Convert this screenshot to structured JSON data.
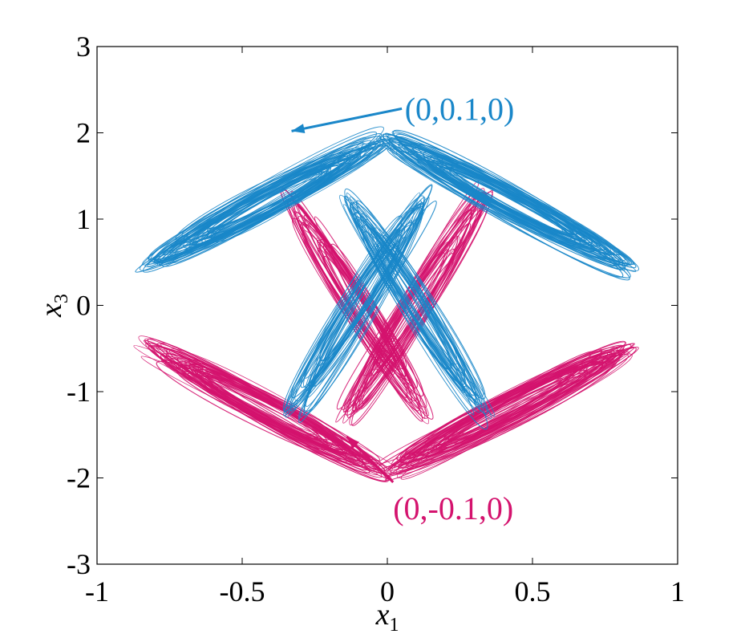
{
  "chart_data": {
    "type": "line",
    "title": "",
    "xlabel": {
      "base": "x",
      "sub": "1"
    },
    "ylabel": {
      "base": "x",
      "sub": "3"
    },
    "xlim": [
      -1,
      1
    ],
    "ylim": [
      -3,
      3
    ],
    "xticks": [
      -1,
      -0.5,
      0,
      0.5,
      1
    ],
    "yticks": [
      -3,
      -2,
      -1,
      0,
      1,
      2,
      3
    ],
    "xtick_labels": [
      "-1",
      "-0.5",
      "0",
      "0.5",
      "1"
    ],
    "ytick_labels": [
      "-3",
      "-2",
      "-1",
      "0",
      "1",
      "2",
      "3"
    ],
    "grid": false,
    "series": [
      {
        "color": "#1a87c9",
        "initial_condition": "(0,0.1,0)",
        "lobes": [
          {
            "center": [
              -0.42,
              1.2
            ],
            "extent": 0.62,
            "angle_deg": -28
          },
          {
            "center": [
              0.42,
              1.2
            ],
            "extent": 0.62,
            "angle_deg": 28
          },
          {
            "center": [
              -0.1,
              0.0
            ],
            "extent": 0.6,
            "angle_deg": -58
          },
          {
            "center": [
              0.1,
              0.0
            ],
            "extent": 0.6,
            "angle_deg": 58
          }
        ]
      },
      {
        "color": "#d4136e",
        "initial_condition": "(0,-0.1,0)",
        "lobes": [
          {
            "center": [
              -0.42,
              -1.2
            ],
            "extent": 0.62,
            "angle_deg": 28
          },
          {
            "center": [
              0.42,
              -1.2
            ],
            "extent": 0.62,
            "angle_deg": -28
          },
          {
            "center": [
              -0.1,
              0.0
            ],
            "extent": 0.6,
            "angle_deg": 58
          },
          {
            "center": [
              0.1,
              0.0
            ],
            "extent": 0.6,
            "angle_deg": -58
          }
        ]
      }
    ],
    "annotations": [
      {
        "text": "(0,0.1,0)",
        "color": "#1a87c9",
        "arrow_from": [
          0.05,
          2.28
        ],
        "arrow_to": [
          -0.33,
          2.02
        ]
      },
      {
        "text": "(0,-0.1,0)",
        "color": "#d4136e",
        "arrow_from": [
          0.02,
          -2.05
        ],
        "arrow_to": [
          -0.14,
          -1.52
        ]
      }
    ]
  }
}
